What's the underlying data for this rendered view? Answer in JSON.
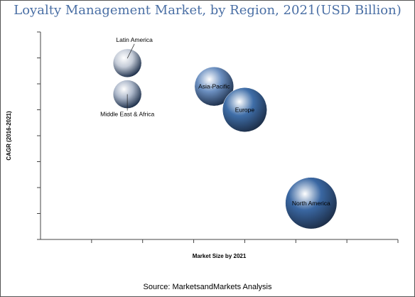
{
  "title": "Loyalty Management Market, by Region, 2021(USD Billion)",
  "source": "Source: MarketsandMarkets Analysis",
  "chart_data": {
    "type": "scatter",
    "title": "Loyalty Management Market, by Region, 2021(USD Billion)",
    "xlabel": "Market Size by 2021",
    "ylabel": "CAGR (2016-2021)",
    "x_ticks": 7,
    "y_ticks": 8,
    "grid": false,
    "series": [
      {
        "name": "Latin America",
        "x": 1.7,
        "y": 6.8,
        "size": 0.8,
        "color": "#c5ccd8",
        "label_pos": "above"
      },
      {
        "name": "Middle East & Africa",
        "x": 1.7,
        "y": 5.6,
        "size": 0.8,
        "color": "#aeb9cb",
        "label_pos": "below"
      },
      {
        "name": "Asia-Pacific",
        "x": 3.4,
        "y": 5.9,
        "size": 1.1,
        "color": "#6b8fc0",
        "label_pos": "center"
      },
      {
        "name": "Europe",
        "x": 4.0,
        "y": 5.0,
        "size": 1.25,
        "color": "#3f6ea8",
        "label_pos": "center"
      },
      {
        "name": "North America",
        "x": 5.3,
        "y": 1.4,
        "size": 1.45,
        "color": "#3a67a2",
        "label_pos": "center"
      }
    ]
  }
}
